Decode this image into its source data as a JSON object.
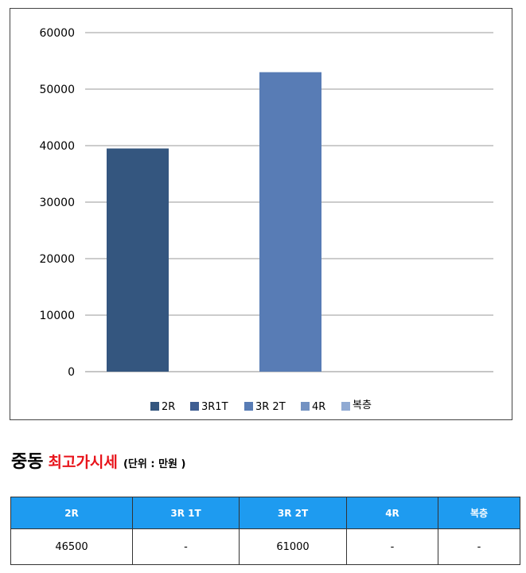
{
  "chart_data": {
    "type": "bar",
    "categories": [
      "2R",
      "3R1T",
      "3R 2T",
      "4R",
      "복층"
    ],
    "values": [
      39500,
      null,
      53000,
      null,
      null
    ],
    "colors": [
      "#34567f",
      "#3f5e92",
      "#587cb5",
      "#7392c2",
      "#90aad3"
    ],
    "ylim": [
      0,
      60000
    ],
    "yticks": [
      0,
      10000,
      20000,
      30000,
      40000,
      50000,
      60000
    ],
    "title": "",
    "xlabel": "",
    "ylabel": "",
    "grid": true,
    "legend_position": "bottom"
  },
  "caption": {
    "main": "중동",
    "highlight": "최고가시세",
    "unit": "(단위 : 만원 )"
  },
  "table": {
    "headers": [
      "2R",
      "3R 1T",
      "3R 2T",
      "4R",
      "복층"
    ],
    "rows": [
      [
        "46500",
        "-",
        "61000",
        "-",
        "-"
      ]
    ]
  }
}
